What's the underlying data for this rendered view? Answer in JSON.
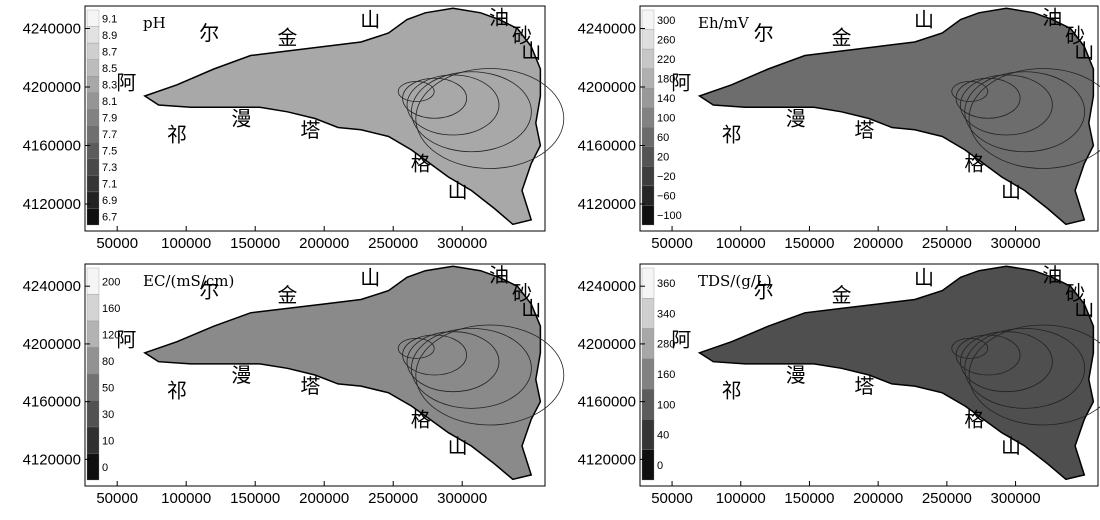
{
  "panels": [
    {
      "id": "ph",
      "variable": "pH",
      "legend": [
        "9.1",
        "8.9",
        "8.7",
        "8.5",
        "8.3",
        "8.1",
        "7.9",
        "7.7",
        "7.5",
        "7.3",
        "7.1",
        "6.9",
        "6.7"
      ],
      "colors": {
        "region": "#a8a8a8",
        "box": "#ffffff"
      }
    },
    {
      "id": "eh",
      "variable": "Eh/mV",
      "legend": [
        "300",
        "260",
        "220",
        "180",
        "140",
        "100",
        "60",
        "20",
        "−20",
        "−60",
        "−100"
      ],
      "colors": {
        "region": "#6d6d6d",
        "box": "#ffffff"
      }
    },
    {
      "id": "ec",
      "variable": "EC/(mS/cm)",
      "legend": [
        "200",
        "160",
        "120",
        "80",
        "50",
        "30",
        "10",
        "0"
      ],
      "colors": {
        "region": "#8a8a8a",
        "box": "#ffffff"
      }
    },
    {
      "id": "tds",
      "variable": "TDS/(g/L)",
      "legend": [
        "360",
        "340",
        "280",
        "160",
        "100",
        "40",
        "0"
      ],
      "colors": {
        "region": "#4f4f4f",
        "box": "#ffffff"
      }
    }
  ],
  "axes": {
    "x_ticks": [
      "50000",
      "100000",
      "150000",
      "200000",
      "250000",
      "300000"
    ],
    "y_ticks": [
      "4240000",
      "4200000",
      "4160000",
      "4120000"
    ]
  },
  "places": {
    "a": "阿",
    "er": "尔",
    "jin": "金",
    "shan_north": "山",
    "you": "油",
    "sha": "砂",
    "shan_east": "山",
    "qi": "祁",
    "man": "漫",
    "ta": "塔",
    "ge": "格",
    "shan_south": "山"
  }
}
